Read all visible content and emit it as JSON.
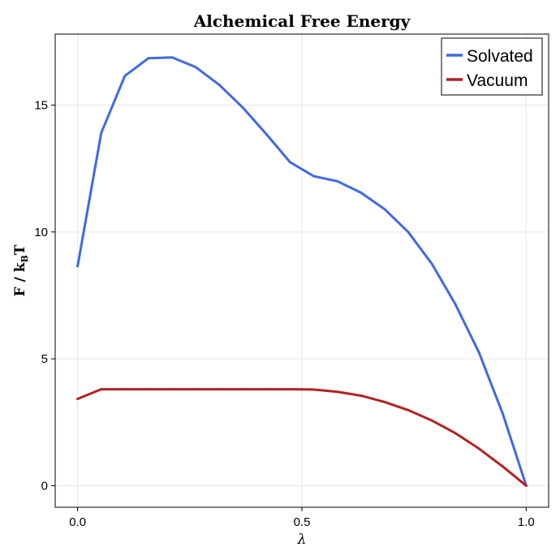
{
  "chart_data": {
    "type": "line",
    "title": "Alchemical Free Energy",
    "xlabel": "λ",
    "ylabel_main": "F / k",
    "ylabel_sub": "B",
    "ylabel_tail": "T",
    "xlim": [
      -0.05,
      1.05
    ],
    "ylim": [
      -0.85,
      17.8
    ],
    "xticks": [
      0.0,
      0.5,
      1.0
    ],
    "xtick_labels": [
      "0.0",
      "0.5",
      "1.0"
    ],
    "yticks": [
      0,
      5,
      10,
      15
    ],
    "ytick_labels": [
      "0",
      "5",
      "10",
      "15"
    ],
    "grid": true,
    "legend_position": "top-right",
    "series": [
      {
        "name": "Solvated",
        "color": "#4169e1",
        "x": [
          0.0,
          0.0526,
          0.1053,
          0.1579,
          0.2105,
          0.2632,
          0.3158,
          0.3684,
          0.4211,
          0.4737,
          0.5263,
          0.5789,
          0.6316,
          0.6842,
          0.7368,
          0.7895,
          0.8421,
          0.8947,
          0.9474,
          1.0
        ],
        "y": [
          8.65,
          13.9,
          16.15,
          16.85,
          16.88,
          16.5,
          15.8,
          14.9,
          13.85,
          12.75,
          12.2,
          12.0,
          11.55,
          10.9,
          10.0,
          8.75,
          7.15,
          5.25,
          2.85,
          0.0
        ]
      },
      {
        "name": "Vacuum",
        "color": "#b22222",
        "x": [
          0.0,
          0.0526,
          0.1053,
          0.1579,
          0.2105,
          0.2632,
          0.3158,
          0.3684,
          0.4211,
          0.4737,
          0.5263,
          0.5789,
          0.6316,
          0.6842,
          0.7368,
          0.7895,
          0.8421,
          0.8947,
          0.9474,
          1.0
        ],
        "y": [
          3.42,
          3.8,
          3.8,
          3.8,
          3.8,
          3.8,
          3.8,
          3.8,
          3.8,
          3.8,
          3.79,
          3.7,
          3.55,
          3.3,
          2.98,
          2.57,
          2.07,
          1.46,
          0.76,
          0.0
        ]
      }
    ]
  }
}
